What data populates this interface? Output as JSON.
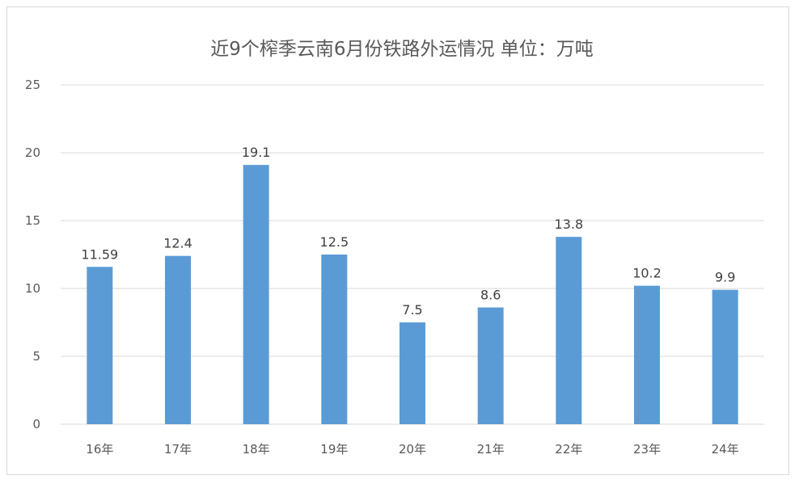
{
  "chart_data": {
    "type": "bar",
    "title": "近9个榨季云南6月份铁路外运情况  单位：万吨",
    "categories": [
      "16年",
      "17年",
      "18年",
      "19年",
      "20年",
      "21年",
      "22年",
      "23年",
      "24年"
    ],
    "values": [
      11.59,
      12.4,
      19.1,
      12.5,
      7.5,
      8.6,
      13.8,
      10.2,
      9.9
    ],
    "data_labels": [
      "11.59",
      "12.4",
      "19.1",
      "12.5",
      "7.5",
      "8.6",
      "13.8",
      "10.2",
      "9.9"
    ],
    "ylim": [
      0,
      25
    ],
    "yticks": [
      "0",
      "5",
      "10",
      "15",
      "20",
      "25"
    ],
    "xlabel": "",
    "ylabel": "",
    "grid": true,
    "bar_color": "#5b9bd5"
  }
}
